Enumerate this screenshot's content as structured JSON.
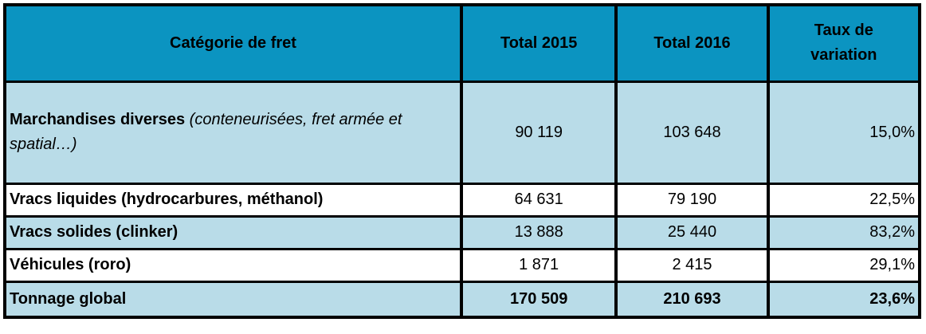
{
  "header": {
    "category": "Catégorie de fret",
    "total_2015": "Total 2015",
    "total_2016": "Total 2016",
    "variation": "Taux de variation"
  },
  "rows": [
    {
      "name": "Marchandises diverses",
      "name_note": " (conteneurisées, fret armée et spatial…)",
      "total_2015": "90 119",
      "total_2016": "103 648",
      "variation": "15,0%"
    },
    {
      "name": "Vracs liquides (hydrocarbures, méthanol)",
      "total_2015": "64 631",
      "total_2016": "79 190",
      "variation": "22,5%"
    },
    {
      "name": "Vracs solides (clinker)",
      "total_2015": "13 888",
      "total_2016": "25 440",
      "variation": "83,2%"
    },
    {
      "name": "Véhicules (roro)",
      "total_2015": "1 871",
      "total_2016": "2 415",
      "variation": "29,1%"
    },
    {
      "name": "Tonnage global",
      "total_2015": "170 509",
      "total_2016": "210 693",
      "variation": "23,6%"
    }
  ],
  "colors": {
    "header_bg": "#0b94c1",
    "shaded_row_bg": "#b9dce8",
    "border": "#000000",
    "text": "#000000",
    "background": "#ffffff"
  }
}
